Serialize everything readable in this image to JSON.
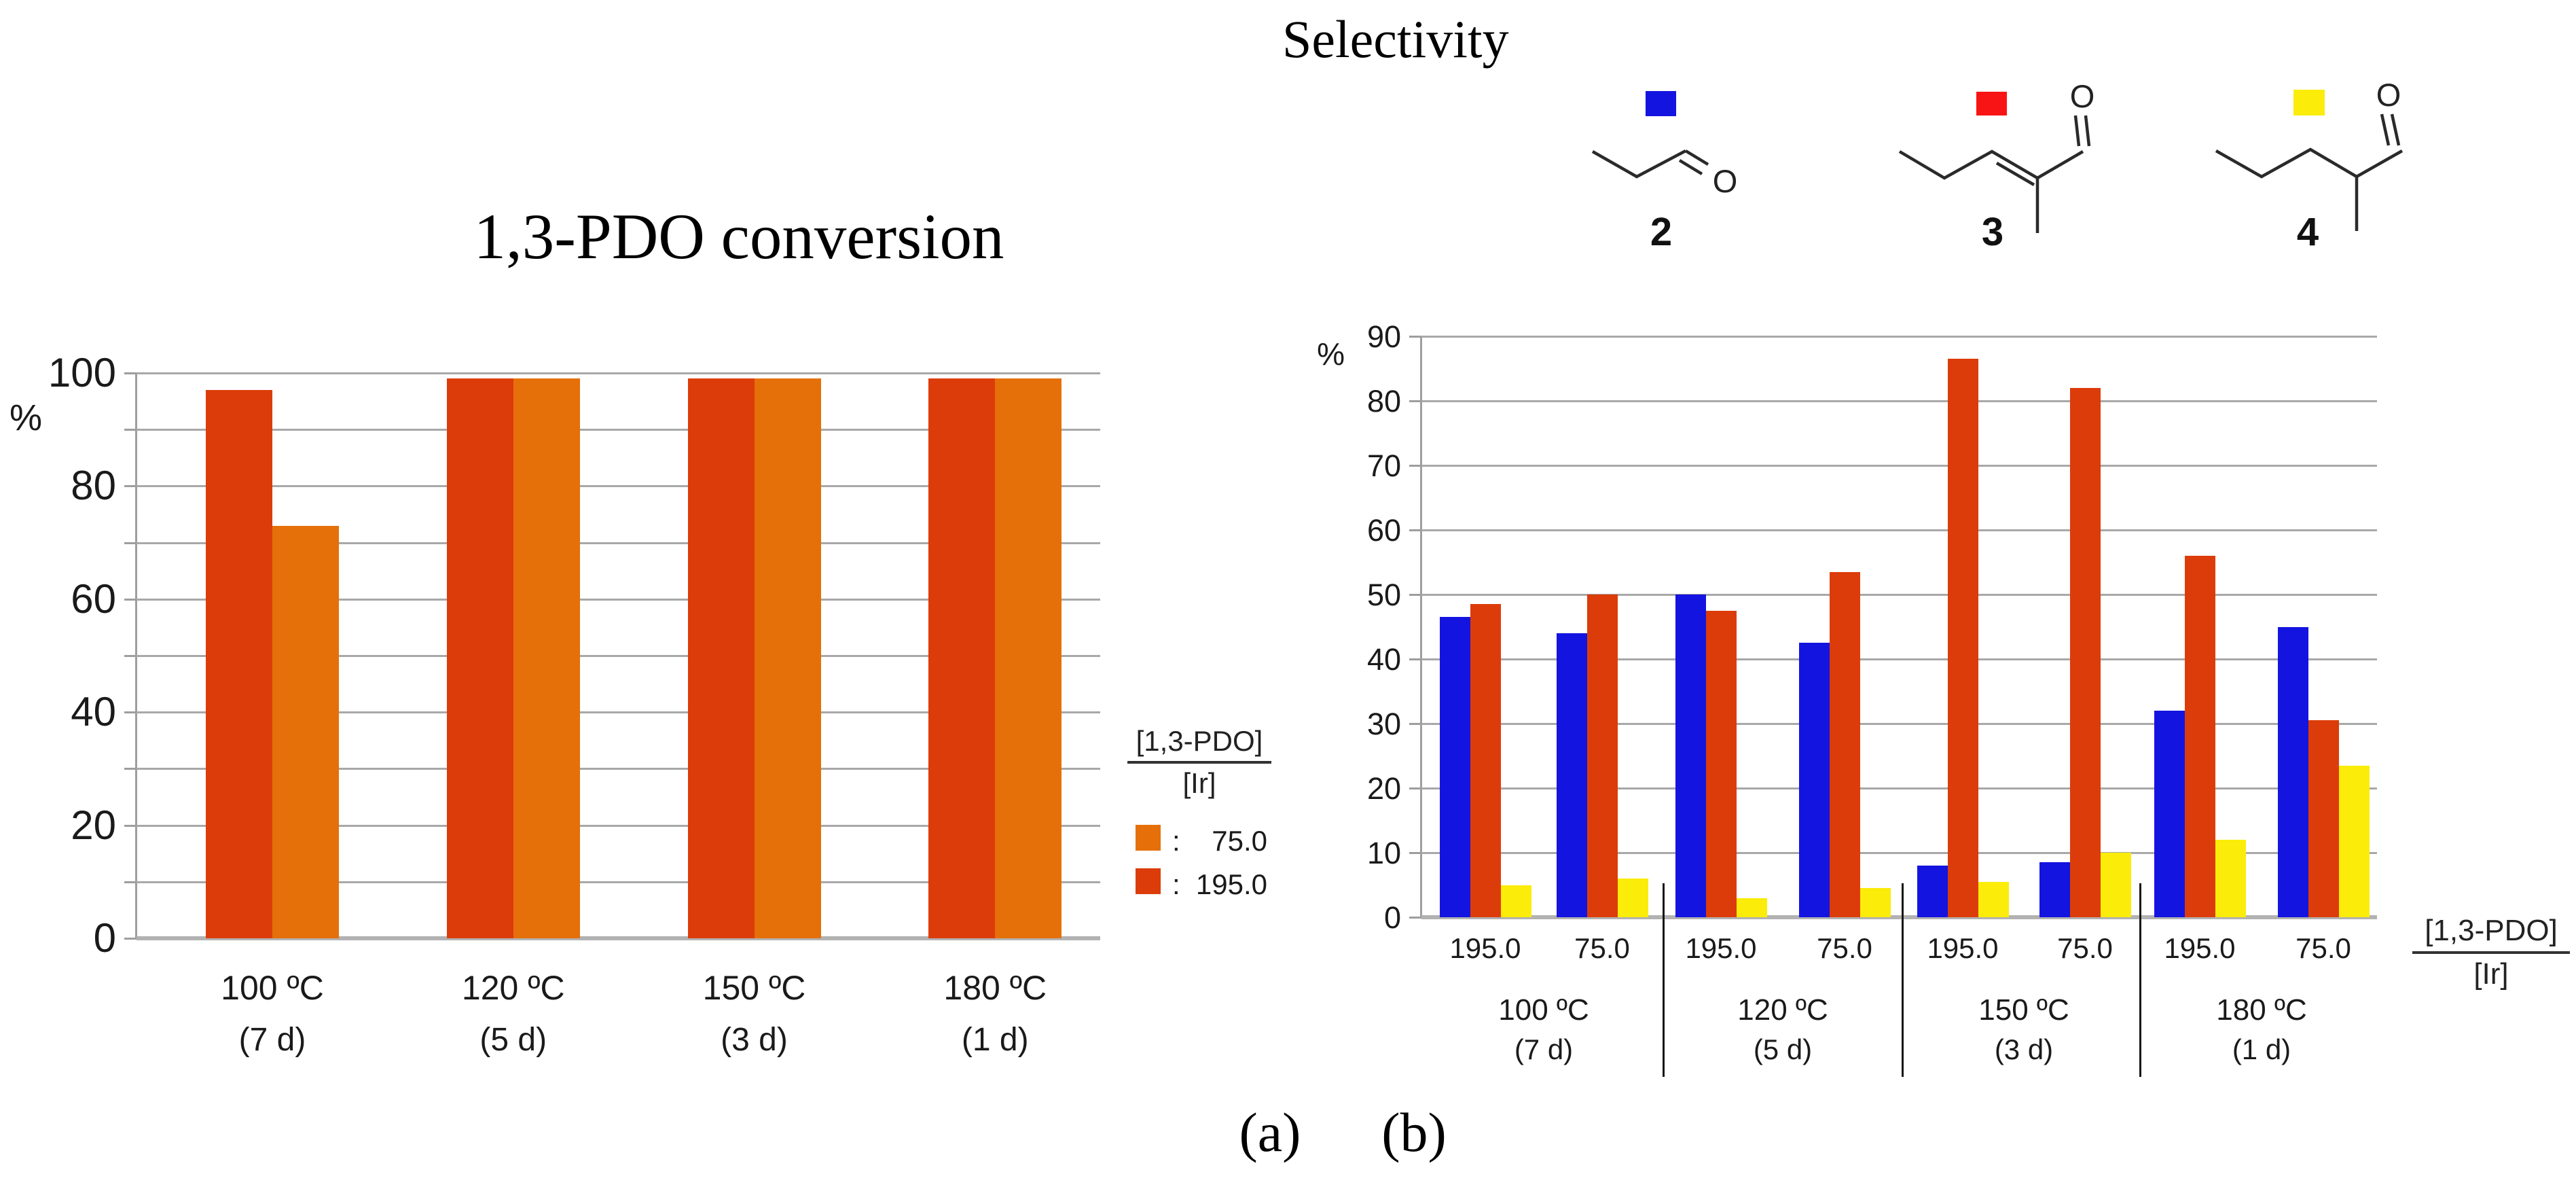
{
  "panel_labels": {
    "a": "(a)",
    "b": "(b)"
  },
  "chart_data": [
    {
      "id": "a",
      "type": "bar",
      "title": "1,3-PDO conversion",
      "ylabel": "%",
      "ylim": [
        0,
        100
      ],
      "grid_step": 10,
      "ytick_values": [
        100,
        80,
        60,
        40,
        20,
        0
      ],
      "categories": [
        {
          "temp": "100 ºC",
          "days": "(7 d)"
        },
        {
          "temp": "120 ºC",
          "days": "(5 d)"
        },
        {
          "temp": "150 ºC",
          "days": "(3 d)"
        },
        {
          "temp": "180 ºC",
          "days": "(1 d)"
        }
      ],
      "series": [
        {
          "name": "195.0",
          "color": "#DC3C0A",
          "values": [
            97,
            99,
            99,
            99
          ]
        },
        {
          "name": "75.0",
          "color": "#E57009",
          "values": [
            73,
            99,
            99,
            99
          ]
        }
      ],
      "legend": {
        "numerator": "[1,3-PDO]",
        "denominator": "[Ir]",
        "entries": [
          {
            "color": "#E57009",
            "colon": ":",
            "label": "75.0"
          },
          {
            "color": "#DC3C0A",
            "colon": ":",
            "label": "195.0"
          }
        ]
      }
    },
    {
      "id": "b",
      "type": "bar",
      "title": "Selectivity",
      "ylabel": "%",
      "ylim": [
        0,
        90
      ],
      "grid_step": 10,
      "ytick_values": [
        90,
        80,
        70,
        60,
        50,
        40,
        30,
        20,
        10,
        0
      ],
      "compound_legend": [
        {
          "id": "2",
          "name": "propanal",
          "swatch_color": "#1414E0"
        },
        {
          "id": "3",
          "name": "2-methylpent-2-enal",
          "swatch_color": "#F81414"
        },
        {
          "id": "4",
          "name": "2-methylpentanal",
          "swatch_color": "#FBEC0A"
        }
      ],
      "groups": [
        {
          "temp": "100 ºC",
          "days": "(7 d)"
        },
        {
          "temp": "120 ºC",
          "days": "(5 d)"
        },
        {
          "temp": "150 ºC",
          "days": "(3 d)"
        },
        {
          "temp": "180 ºC",
          "days": "(1 d)"
        }
      ],
      "ratio_labels": [
        "195.0",
        "75.0",
        "195.0",
        "75.0",
        "195.0",
        "75.0",
        "195.0",
        "75.0"
      ],
      "series": [
        {
          "name": "2",
          "color": "#1414E0",
          "values": [
            46.5,
            44,
            50,
            42.5,
            8,
            8.5,
            32,
            45
          ]
        },
        {
          "name": "3",
          "color": "#DC3C0A",
          "values": [
            48.5,
            50,
            47.5,
            53.5,
            86.5,
            82,
            56,
            30.5
          ]
        },
        {
          "name": "4",
          "color": "#FBEC0A",
          "values": [
            5,
            6,
            3,
            4.5,
            5.5,
            10,
            12,
            23.5
          ]
        }
      ],
      "axis_fraction": {
        "numerator": "[1,3-PDO]",
        "denominator": "[Ir]"
      }
    }
  ]
}
